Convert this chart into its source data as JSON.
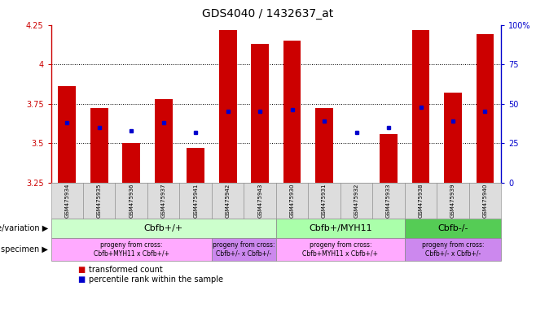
{
  "title": "GDS4040 / 1432637_at",
  "samples": [
    "GSM475934",
    "GSM475935",
    "GSM475936",
    "GSM475937",
    "GSM475941",
    "GSM475942",
    "GSM475943",
    "GSM475930",
    "GSM475931",
    "GSM475932",
    "GSM475933",
    "GSM475938",
    "GSM475939",
    "GSM475940"
  ],
  "bar_values": [
    3.86,
    3.72,
    3.5,
    3.78,
    3.47,
    4.22,
    4.13,
    4.15,
    3.72,
    3.25,
    3.56,
    4.22,
    3.82,
    4.19
  ],
  "dot_values": [
    3.63,
    3.6,
    3.58,
    3.63,
    3.57,
    3.7,
    3.7,
    3.71,
    3.64,
    3.57,
    3.6,
    3.73,
    3.64,
    3.7
  ],
  "bar_color": "#cc0000",
  "dot_color": "#0000cc",
  "ylim": [
    3.25,
    4.25
  ],
  "yticks": [
    3.25,
    3.5,
    3.75,
    4.0,
    4.25
  ],
  "ytick_labels": [
    "3.25",
    "3.5",
    "3.75",
    "4",
    "4.25"
  ],
  "y2lim": [
    0,
    100
  ],
  "y2ticks": [
    0,
    25,
    50,
    75,
    100
  ],
  "y2tick_labels": [
    "0",
    "25",
    "50",
    "75",
    "100%"
  ],
  "grid_values": [
    3.5,
    3.75,
    4.0
  ],
  "bar_bottom": 3.25,
  "legend_red": "transformed count",
  "legend_blue": "percentile rank within the sample",
  "genotype_label": "genotype/variation",
  "specimen_label": "specimen",
  "geno_groups": [
    {
      "label": "Cbfb+/+",
      "start": 0,
      "end": 7,
      "color": "#ccffcc"
    },
    {
      "label": "Cbfb+/MYH11",
      "start": 7,
      "end": 11,
      "color": "#aaffaa"
    },
    {
      "label": "Cbfb-/-",
      "start": 11,
      "end": 14,
      "color": "#55cc55"
    }
  ],
  "spec_groups": [
    {
      "label": "progeny from cross:\nCbfb+MYH11 x Cbfb+/+",
      "start": 0,
      "end": 5,
      "color": "#ffaaff"
    },
    {
      "label": "progeny from cross:\nCbfb+/- x Cbfb+/-",
      "start": 5,
      "end": 7,
      "color": "#cc88ee"
    },
    {
      "label": "progeny from cross:\nCbfb+MYH11 x Cbfb+/+",
      "start": 7,
      "end": 11,
      "color": "#ffaaff"
    },
    {
      "label": "progeny from cross:\nCbfb+/- x Cbfb+/-",
      "start": 11,
      "end": 14,
      "color": "#cc88ee"
    }
  ]
}
